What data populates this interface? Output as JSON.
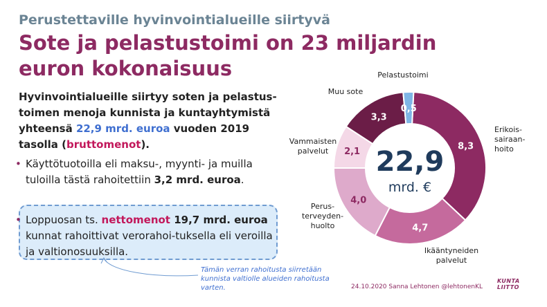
{
  "kicker": "Perustettaville hyvinvointialueille siirtyvä",
  "headline": "Sote ja pelastustoimi on 23 miljardin euron kokonaisuus",
  "lead": {
    "part1": "Hyvinvointialueille siirtyy soten ja pelastus-toimen menoja kunnista ja kuntayhtymistä yhteensä ",
    "amount": "22,9 mrd. euroa",
    "part2": " vuoden 2019 tasolla (",
    "gross": "bruttomenot",
    "part3": ")."
  },
  "bullet_dot": "•",
  "bullet1": {
    "part1": "Käyttötuotoilla eli maksu-, myynti- ja muilla tuloilla tästä rahoitettiin ",
    "amount": "3,2 mrd. euroa",
    "part2": "."
  },
  "bullet2": {
    "part1": "Loppuosan ts. ",
    "net": "nettomenot",
    "amount": " 19,7 mrd. euroa",
    "part2": " kunnat rahoittivat verorahoi-tuksella eli veroilla ja valtionosuuksilla."
  },
  "note": "Tämän verran rahoitusta siirretään kunnista valtiolle alueiden rahoitusta varten.",
  "footer": "24.10.2020 Sanna Lehtonen  @lehtonenKL",
  "logo": [
    "KUNTA",
    "LIITTO"
  ],
  "chart_data": {
    "type": "pie",
    "donut": true,
    "center_value": "22,9",
    "center_unit": "mrd. €",
    "categories": [
      "Erikois-sairaan-hoito",
      "Ikääntyneiden palvelut",
      "Perus-terveyden-huolto",
      "Vammaisten palvelut",
      "Muu sote",
      "Pelastustoimi"
    ],
    "values": [
      8.3,
      4.7,
      4.0,
      2.1,
      3.3,
      0.5
    ],
    "value_labels": [
      "8,3",
      "4,7",
      "4,0",
      "2,1",
      "3,3",
      "0,5"
    ],
    "colors": [
      "#8d2a62",
      "#c56a9d",
      "#deaacb",
      "#f4d8e7",
      "#6b1d47",
      "#7fb6e6"
    ]
  }
}
